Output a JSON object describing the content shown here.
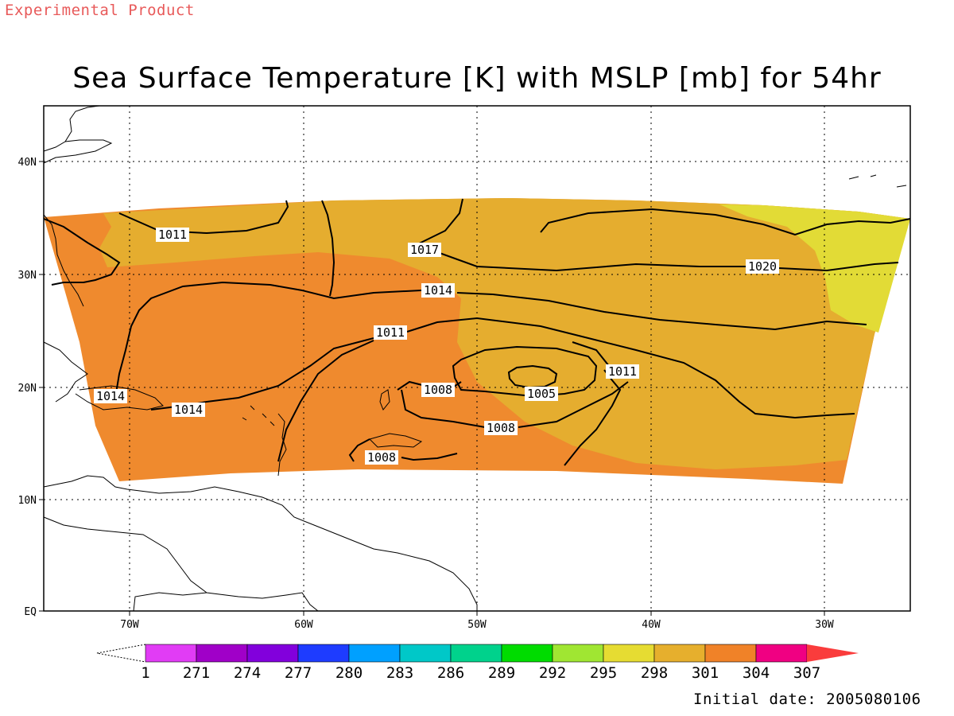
{
  "header": {
    "experimental_label": "Experimental Product",
    "title": "Sea Surface Temperature [K] with MSLP [mb] for 54hr"
  },
  "footer": {
    "initial_date": "Initial date: 2005080106"
  },
  "map": {
    "lat_labels": [
      "40N",
      "30N",
      "20N",
      "10N",
      "EQ"
    ],
    "lon_labels": [
      "70W",
      "60W",
      "50W",
      "40W",
      "30W"
    ],
    "grid": "dotted",
    "sst_colors": {
      "warm_orange": "#ef8a2e",
      "gold": "#e5ad2f",
      "yellow": "#e2db36"
    },
    "isobar_labels": [
      "1011",
      "1017",
      "1020",
      "1014",
      "1011",
      "1011",
      "1014",
      "1014",
      "1008",
      "1005",
      "1008",
      "1008"
    ]
  },
  "colorbar": {
    "labels": [
      "1",
      "271",
      "274",
      "277",
      "280",
      "283",
      "286",
      "289",
      "292",
      "295",
      "298",
      "301",
      "304",
      "307"
    ],
    "colors": [
      "#e13cf5",
      "#a000c8",
      "#8200dc",
      "#1e3cff",
      "#00a0ff",
      "#00c8c8",
      "#00d28c",
      "#00dc00",
      "#a0e632",
      "#e6dc32",
      "#e6af2d",
      "#f08228",
      "#f00082",
      "#fa3c3c"
    ]
  }
}
